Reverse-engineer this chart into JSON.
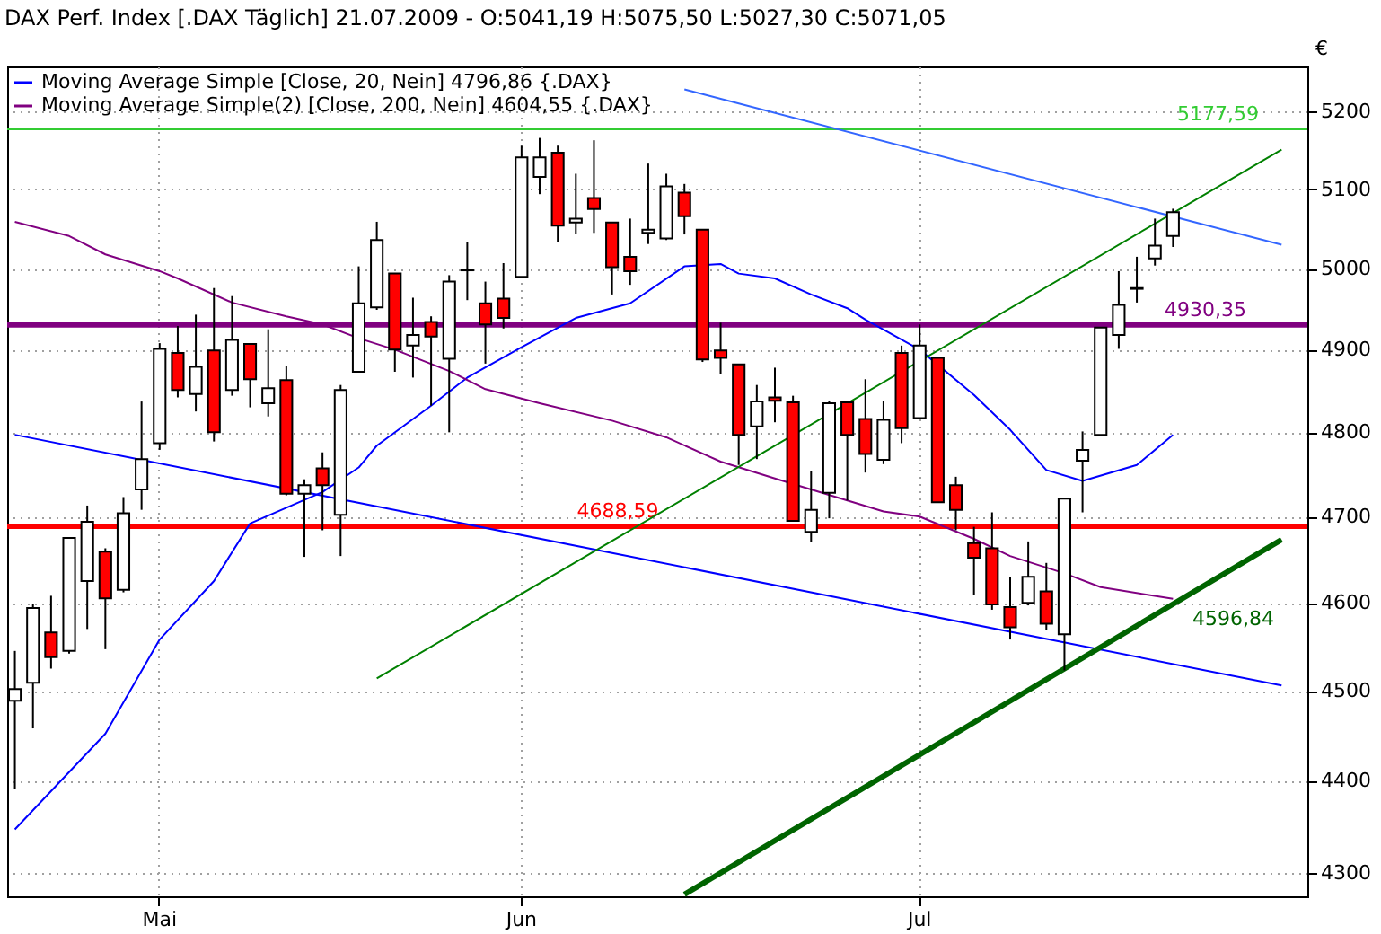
{
  "chart_data": {
    "type": "candlestick",
    "title": "DAX Perf. Index [.DAX  Täglich] 21.07.2009 - O:5041,19 H:5075,50 L:5027,30 C:5071,05",
    "ylabel": "€",
    "categories": [
      null,
      null,
      null,
      null,
      null,
      null,
      null,
      null,
      "Mai",
      null,
      null,
      null,
      null,
      null,
      null,
      null,
      null,
      null,
      null,
      null,
      null,
      null,
      null,
      null,
      null,
      null,
      null,
      null,
      "Jun",
      null,
      null,
      null,
      null,
      null,
      null,
      null,
      null,
      null,
      null,
      null,
      null,
      null,
      null,
      null,
      null,
      null,
      null,
      null,
      null,
      null,
      "Jul",
      null,
      null,
      null,
      null,
      null,
      null,
      null,
      null,
      null,
      null,
      null,
      null,
      null,
      null,
      null,
      null,
      null,
      null,
      null,
      null,
      null
    ],
    "ohlc": [
      [
        4489,
        4545,
        4391,
        4502
      ],
      [
        4509,
        4599,
        4458,
        4594
      ],
      [
        4566,
        4608,
        4525,
        4538
      ],
      [
        4545,
        4675,
        4542,
        4675
      ],
      [
        4625,
        4713,
        4570,
        4694
      ],
      [
        4659,
        4663,
        4547,
        4605
      ],
      [
        4615,
        4723,
        4612,
        4704
      ],
      [
        4732,
        4837,
        4708,
        4768
      ],
      [
        4787,
        4908,
        4779,
        4901
      ],
      [
        4896,
        4929,
        4842,
        4851
      ],
      [
        4846,
        4943,
        4825,
        4879
      ],
      [
        4899,
        4976,
        4789,
        4800
      ],
      [
        4851,
        4966,
        4844,
        4912
      ],
      [
        4907,
        4907,
        4830,
        4864
      ],
      [
        4835,
        4925,
        4819,
        4853
      ],
      [
        4863,
        4880,
        4725,
        4727
      ],
      [
        4727,
        4744,
        4653,
        4737
      ],
      [
        4757,
        4776,
        4684,
        4737
      ],
      [
        4702,
        4857,
        4654,
        4851
      ],
      [
        4873,
        5003,
        4873,
        4957
      ],
      [
        4952,
        5059,
        4949,
        5036
      ],
      [
        4994,
        4994,
        4873,
        4900
      ],
      [
        4905,
        4964,
        4866,
        4918
      ],
      [
        4934,
        4941,
        4832,
        4916
      ],
      [
        4889,
        4992,
        4800,
        4984
      ],
      [
        4998,
        5034,
        4961,
        4999
      ],
      [
        4957,
        4984,
        4883,
        4931
      ],
      [
        4963,
        5007,
        4926,
        4939
      ],
      [
        4990,
        5156,
        4990,
        5141
      ],
      [
        5116,
        5166,
        5094,
        5141
      ],
      [
        5147,
        5156,
        5034,
        5054
      ],
      [
        5058,
        5120,
        5044,
        5063
      ],
      [
        5089,
        5163,
        5045,
        5075
      ],
      [
        5058,
        5058,
        4968,
        5002
      ],
      [
        5015,
        5063,
        4980,
        4997
      ],
      [
        5045,
        5133,
        5031,
        5049
      ],
      [
        5038,
        5120,
        5036,
        5104
      ],
      [
        5096,
        5107,
        5043,
        5066
      ],
      [
        5049,
        5049,
        4885,
        4888
      ],
      [
        4899,
        4933,
        4870,
        4890
      ],
      [
        4882,
        4882,
        4761,
        4797
      ],
      [
        4807,
        4857,
        4768,
        4837
      ],
      [
        4842,
        4878,
        4812,
        4838
      ],
      [
        4836,
        4844,
        4695,
        4695
      ],
      [
        4682,
        4754,
        4670,
        4708
      ],
      [
        4728,
        4838,
        4698,
        4835
      ],
      [
        4836,
        4836,
        4719,
        4797
      ],
      [
        4816,
        4864,
        4752,
        4774
      ],
      [
        4767,
        4838,
        4762,
        4815
      ],
      [
        4896,
        4905,
        4787,
        4805
      ],
      [
        4817,
        4931,
        4817,
        4905
      ],
      [
        4890,
        4890,
        4717,
        4717
      ],
      [
        4737,
        4747,
        4684,
        4708
      ],
      [
        4669,
        4688,
        4609,
        4652
      ],
      [
        4663,
        4705,
        4592,
        4598
      ],
      [
        4595,
        4630,
        4558,
        4572
      ],
      [
        4600,
        4671,
        4597,
        4630
      ],
      [
        4613,
        4646,
        4569,
        4576
      ],
      [
        4564,
        4721,
        4523,
        4721
      ],
      [
        4766,
        4801,
        4705,
        4779
      ],
      [
        4797,
        4927,
        4797,
        4927
      ],
      [
        4918,
        4997,
        4901,
        4955
      ],
      [
        4975,
        5015,
        4958,
        4976
      ],
      [
        5013,
        5063,
        5004,
        5029
      ],
      [
        5041.19,
        5075.5,
        5027.3,
        5071.05
      ],
      null,
      null,
      null,
      null,
      null,
      null,
      null
    ],
    "series": [
      {
        "name": "Moving Average Simple [Close, 20, Nein] 4796,86 {.DAX}",
        "type": "line",
        "color": "#0000ff",
        "values": [
          4347,
          null,
          null,
          null,
          null,
          4452,
          null,
          null,
          4558,
          null,
          null,
          4625,
          null,
          4692,
          null,
          null,
          null,
          4729,
          null,
          4758,
          4784,
          null,
          null,
          4832,
          null,
          4866,
          null,
          null,
          4903,
          null,
          null,
          4939,
          null,
          null,
          4957,
          null,
          null,
          5003,
          null,
          5006,
          4994,
          null,
          4988,
          null,
          4968,
          null,
          4951,
          4937,
          null,
          null,
          4900,
          null,
          null,
          4845,
          null,
          4803,
          null,
          4755,
          null,
          4742,
          null,
          null,
          4761,
          null,
          4796.86,
          null,
          null,
          null,
          null,
          null,
          null,
          null
        ]
      },
      {
        "name": "Moving Average Simple(2) [Close, 200, Nein] 4604,55 {.DAX}",
        "type": "line",
        "color": "#800080",
        "values": [
          5059,
          null,
          null,
          5041,
          null,
          5018,
          null,
          null,
          4997,
          4988,
          null,
          null,
          4958,
          null,
          null,
          4941,
          null,
          4931,
          null,
          4914,
          null,
          4900,
          null,
          null,
          4874,
          null,
          4852,
          null,
          null,
          4835,
          null,
          null,
          null,
          4814,
          null,
          null,
          4794,
          null,
          null,
          4765,
          null,
          null,
          4745,
          null,
          null,
          null,
          4719,
          null,
          4706,
          null,
          4700,
          null,
          null,
          4674,
          null,
          4654,
          null,
          null,
          4634,
          null,
          4618,
          null,
          null,
          null,
          4604.55,
          null,
          null,
          null,
          null,
          null,
          null,
          null
        ]
      },
      {
        "type": "line",
        "color": "#0000ff",
        "values": [
          4797,
          null,
          null,
          null,
          null,
          null,
          null,
          null,
          null,
          null,
          null,
          null,
          null,
          null,
          null,
          null,
          null,
          null,
          null,
          null,
          null,
          null,
          null,
          null,
          null,
          null,
          null,
          null,
          null,
          null,
          null,
          null,
          null,
          null,
          null,
          null,
          null,
          null,
          null,
          null,
          null,
          null,
          null,
          null,
          null,
          null,
          null,
          null,
          null,
          null,
          null,
          null,
          null,
          null,
          null,
          null,
          null,
          null,
          null,
          null,
          null,
          null,
          null,
          null,
          null,
          null,
          null,
          null,
          null,
          null,
          4506,
          null
        ]
      },
      {
        "type": "line",
        "color": "#3366ff",
        "values": [
          null,
          null,
          null,
          null,
          null,
          null,
          null,
          null,
          null,
          null,
          null,
          null,
          null,
          null,
          null,
          null,
          null,
          null,
          null,
          null,
          null,
          null,
          null,
          null,
          null,
          null,
          null,
          null,
          null,
          null,
          null,
          null,
          null,
          null,
          null,
          null,
          null,
          5229,
          null,
          null,
          null,
          null,
          null,
          null,
          null,
          null,
          null,
          null,
          null,
          null,
          null,
          null,
          null,
          null,
          null,
          null,
          null,
          null,
          null,
          null,
          null,
          null,
          null,
          null,
          null,
          null,
          null,
          null,
          null,
          null,
          5030,
          null
        ]
      },
      {
        "type": "line",
        "color": "#008000",
        "values": [
          null,
          null,
          null,
          null,
          null,
          null,
          null,
          null,
          null,
          null,
          null,
          null,
          null,
          null,
          null,
          null,
          null,
          null,
          null,
          null,
          4514,
          null,
          null,
          null,
          null,
          null,
          null,
          null,
          null,
          null,
          null,
          null,
          null,
          null,
          null,
          null,
          null,
          null,
          null,
          null,
          null,
          null,
          null,
          null,
          null,
          null,
          null,
          null,
          null,
          null,
          null,
          null,
          null,
          null,
          null,
          null,
          null,
          null,
          null,
          null,
          null,
          null,
          null,
          null,
          null,
          null,
          null,
          null,
          null,
          null,
          5151,
          null
        ]
      },
      {
        "type": "line",
        "color": "#006400",
        "values": [
          null,
          null,
          null,
          null,
          null,
          null,
          null,
          null,
          null,
          null,
          null,
          null,
          null,
          null,
          null,
          null,
          null,
          null,
          null,
          null,
          null,
          null,
          null,
          null,
          null,
          null,
          null,
          null,
          null,
          null,
          null,
          null,
          null,
          null,
          null,
          null,
          null,
          4277,
          null,
          null,
          null,
          null,
          null,
          null,
          null,
          null,
          null,
          null,
          null,
          null,
          null,
          null,
          null,
          null,
          null,
          null,
          null,
          null,
          null,
          null,
          null,
          null,
          null,
          null,
          null,
          null,
          null,
          null,
          null,
          null,
          4673,
          null
        ]
      }
    ],
    "ref_lines": [
      {
        "axis": "y",
        "value": 5177.59,
        "label": "5177,59",
        "color": "#33cc33"
      },
      {
        "axis": "y",
        "value": 4930.35,
        "label": "4930,35",
        "color": "#800080"
      },
      {
        "axis": "y",
        "value": 4688.59,
        "label": "4688,59",
        "color": "#ff0000"
      }
    ],
    "annotations": [
      "4596,84"
    ],
    "ylim": [
      4275,
      5259
    ],
    "yticks": [
      4300,
      4400,
      4500,
      4600,
      4700,
      4800,
      4900,
      5000,
      5100,
      5200
    ],
    "log": true,
    "grid": true,
    "legend": "top left"
  }
}
